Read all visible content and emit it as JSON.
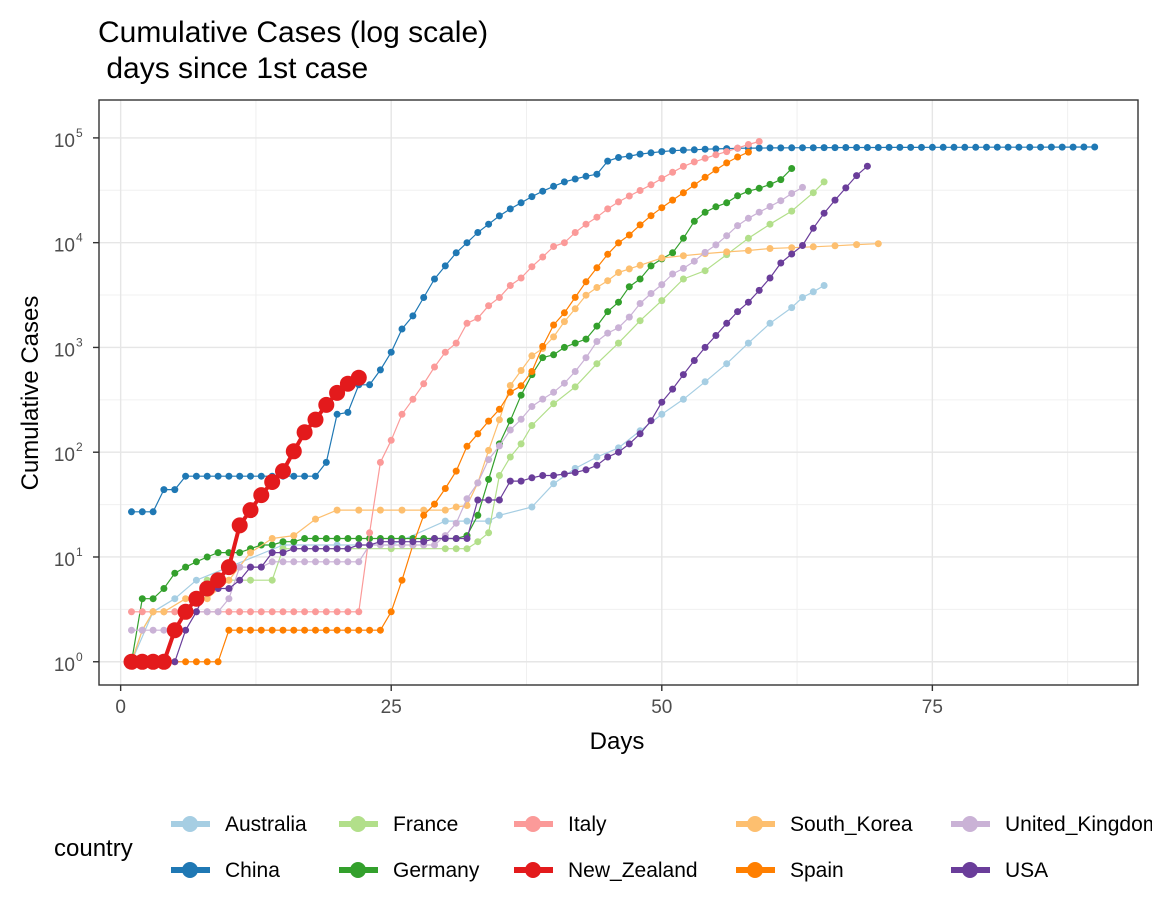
{
  "chart_data": {
    "type": "line",
    "title": "Cumulative Cases (log scale)",
    "subtitle": " days since 1st case",
    "xlabel": "Days",
    "ylabel": "Cumulative Cases",
    "x_scale": "linear",
    "y_scale": "log10",
    "xlim": [
      -2,
      94
    ],
    "ylim": [
      0.6,
      230000
    ],
    "x_ticks": [
      0,
      25,
      50,
      75
    ],
    "y_tick_exponents": [
      0,
      1,
      2,
      3,
      4,
      5
    ],
    "y_tick_base": "10",
    "grid": true,
    "legend_title": "country",
    "legend_position": "bottom",
    "series": [
      {
        "name": "Australia",
        "color": "#a6cee3",
        "size": 3.5,
        "x": [
          1,
          3,
          5,
          7,
          10,
          15,
          20,
          25,
          30,
          32,
          34,
          35,
          38,
          40,
          42,
          44,
          46,
          48,
          50,
          52,
          54,
          56,
          58,
          60,
          62,
          63,
          64,
          65
        ],
        "y": [
          1,
          3,
          4,
          6,
          8,
          13,
          13,
          13,
          22,
          22,
          22,
          25,
          30,
          50,
          70,
          90,
          110,
          160,
          230,
          320,
          470,
          700,
          1100,
          1700,
          2400,
          3000,
          3400,
          3900
        ]
      },
      {
        "name": "China",
        "color": "#1f78b4",
        "size": 3.5,
        "x": [
          1,
          2,
          3,
          4,
          5,
          6,
          7,
          8,
          9,
          10,
          11,
          12,
          13,
          14,
          15,
          16,
          17,
          18,
          19,
          20,
          21,
          22,
          23,
          24,
          25,
          26,
          27,
          28,
          29,
          30,
          31,
          32,
          33,
          34,
          35,
          36,
          37,
          38,
          39,
          40,
          41,
          42,
          43,
          44,
          45,
          46,
          47,
          48,
          49,
          50,
          51,
          52,
          53,
          54,
          55,
          56,
          57,
          58,
          59,
          60,
          61,
          62,
          63,
          64,
          65,
          66,
          67,
          68,
          69,
          70,
          71,
          72,
          73,
          74,
          75,
          76,
          77,
          78,
          79,
          80,
          81,
          82,
          83,
          84,
          85,
          86,
          87,
          88,
          89,
          90
        ],
        "y": [
          27,
          27,
          27,
          44,
          44,
          59,
          59,
          59,
          59,
          59,
          59,
          59,
          59,
          59,
          59,
          59,
          59,
          59,
          80,
          230,
          240,
          440,
          440,
          610,
          900,
          1500,
          2000,
          3000,
          4500,
          6000,
          8000,
          10000,
          12500,
          15000,
          18000,
          21000,
          24000,
          27500,
          31000,
          34500,
          38000,
          40500,
          43000,
          45000,
          60000,
          65000,
          67000,
          70000,
          72000,
          74000,
          75500,
          76500,
          77000,
          78000,
          78500,
          79000,
          79500,
          80000,
          80000,
          80200,
          80300,
          80500,
          80600,
          80700,
          80800,
          80850,
          80900,
          80950,
          81000,
          81050,
          81100,
          81150,
          81200,
          81200,
          81250,
          81300,
          81350,
          81400,
          81400,
          81450,
          81500,
          81500,
          81550,
          81600,
          81600,
          81650,
          81700,
          81750,
          81800,
          81800
        ]
      },
      {
        "name": "France",
        "color": "#b2df8a",
        "size": 3.5,
        "x": [
          1,
          2,
          3,
          4,
          5,
          6,
          8,
          10,
          12,
          14,
          15,
          20,
          25,
          30,
          31,
          32,
          33,
          34,
          35,
          36,
          37,
          38,
          40,
          42,
          44,
          46,
          48,
          50,
          52,
          54,
          56,
          58,
          60,
          62,
          64,
          65
        ],
        "y": [
          1,
          2,
          3,
          3,
          3,
          3,
          6,
          6,
          6,
          6,
          12,
          12,
          12,
          12,
          12,
          12,
          14,
          17,
          60,
          90,
          120,
          180,
          290,
          420,
          700,
          1100,
          1800,
          2800,
          4500,
          5400,
          7700,
          11000,
          15000,
          20000,
          30000,
          38000
        ]
      },
      {
        "name": "Germany",
        "color": "#33a02c",
        "size": 3.5,
        "x": [
          1,
          2,
          3,
          4,
          5,
          6,
          7,
          8,
          9,
          10,
          11,
          12,
          13,
          14,
          15,
          16,
          17,
          18,
          19,
          20,
          21,
          22,
          23,
          24,
          25,
          26,
          27,
          28,
          29,
          30,
          31,
          32,
          33,
          34,
          35,
          36,
          37,
          38,
          39,
          40,
          41,
          42,
          43,
          44,
          45,
          46,
          47,
          48,
          49,
          50,
          51,
          52,
          53,
          54,
          55,
          56,
          57,
          58,
          59,
          60,
          61,
          62
        ],
        "y": [
          1,
          4,
          4,
          5,
          7,
          8,
          9,
          10,
          11,
          11,
          11,
          12,
          13,
          13,
          14,
          14,
          15,
          15,
          15,
          15,
          15,
          15,
          15,
          15,
          15,
          15,
          15,
          15,
          15,
          15,
          15,
          16,
          25,
          55,
          120,
          200,
          350,
          550,
          800,
          850,
          1000,
          1100,
          1200,
          1600,
          2200,
          2700,
          3800,
          4500,
          6000,
          7000,
          8000,
          11000,
          16000,
          19500,
          22000,
          24000,
          28000,
          31000,
          33000,
          36000,
          40000,
          51000
        ]
      },
      {
        "name": "Italy",
        "color": "#fb9a99",
        "size": 3.5,
        "x": [
          1,
          2,
          3,
          4,
          5,
          6,
          7,
          8,
          9,
          10,
          11,
          12,
          13,
          14,
          15,
          16,
          17,
          18,
          19,
          20,
          21,
          22,
          23,
          24,
          25,
          26,
          27,
          28,
          29,
          30,
          31,
          32,
          33,
          34,
          35,
          36,
          37,
          38,
          39,
          40,
          41,
          42,
          43,
          44,
          45,
          46,
          47,
          48,
          49,
          50,
          51,
          52,
          53,
          54,
          55,
          56,
          57,
          58,
          59
        ],
        "y": [
          3,
          3,
          3,
          3,
          3,
          3,
          3,
          3,
          3,
          3,
          3,
          3,
          3,
          3,
          3,
          3,
          3,
          3,
          3,
          3,
          3,
          3,
          17,
          80,
          130,
          230,
          320,
          450,
          650,
          900,
          1100,
          1700,
          1900,
          2500,
          3000,
          3900,
          4600,
          5900,
          7300,
          9200,
          10000,
          12500,
          15000,
          17500,
          21000,
          24500,
          27900,
          31500,
          35700,
          41000,
          47000,
          53500,
          59000,
          63900,
          69000,
          74000,
          80000,
          86500,
          92400
        ]
      },
      {
        "name": "New_Zealand",
        "color": "#e31a1c",
        "size": 8,
        "x": [
          1,
          2,
          3,
          4,
          5,
          6,
          7,
          8,
          9,
          10,
          11,
          12,
          13,
          14,
          15,
          16,
          17,
          18,
          19,
          20,
          21,
          22
        ],
        "y": [
          1,
          1,
          1,
          1,
          2,
          3,
          4,
          5,
          6,
          8,
          20,
          28,
          39,
          52,
          66,
          102,
          155,
          205,
          283,
          368,
          451,
          514
        ]
      },
      {
        "name": "South_Korea",
        "color": "#fdbf6f",
        "size": 3.5,
        "x": [
          1,
          2,
          3,
          4,
          6,
          8,
          10,
          12,
          14,
          16,
          18,
          20,
          22,
          24,
          26,
          28,
          30,
          31,
          32,
          33,
          34,
          35,
          36,
          37,
          38,
          39,
          40,
          41,
          42,
          43,
          44,
          45,
          46,
          47,
          48,
          50,
          52,
          54,
          56,
          58,
          60,
          62,
          64,
          66,
          68,
          70
        ],
        "y": [
          1,
          2,
          3,
          3,
          4,
          4,
          6,
          11,
          15,
          16,
          23,
          28,
          28,
          28,
          28,
          28,
          28,
          30,
          31,
          51,
          104,
          204,
          433,
          602,
          833,
          977,
          1261,
          1766,
          2337,
          3150,
          3736,
          4335,
          5186,
          5621,
          6088,
          7134,
          7513,
          7869,
          8162,
          8413,
          8799,
          8961,
          9137,
          9332,
          9583,
          9786
        ]
      },
      {
        "name": "Spain",
        "color": "#ff7f00",
        "size": 3.5,
        "x": [
          1,
          2,
          4,
          5,
          6,
          7,
          8,
          9,
          10,
          11,
          12,
          13,
          14,
          15,
          16,
          17,
          18,
          19,
          20,
          21,
          22,
          23,
          24,
          25,
          26,
          27,
          28,
          29,
          30,
          31,
          32,
          33,
          34,
          35,
          36,
          37,
          38,
          39,
          40,
          41,
          42,
          43,
          44,
          45,
          46,
          47,
          48,
          49,
          50,
          51,
          52,
          53,
          54,
          55,
          56,
          57,
          58
        ],
        "y": [
          1,
          1,
          1,
          1,
          1,
          1,
          1,
          1,
          2,
          2,
          2,
          2,
          2,
          2,
          2,
          2,
          2,
          2,
          2,
          2,
          2,
          2,
          2,
          3,
          6,
          13,
          25,
          32,
          45,
          66,
          114,
          150,
          198,
          257,
          374,
          430,
          589,
          1024,
          1639,
          2140,
          3004,
          4231,
          5753,
          7753,
          9942,
          11826,
          14769,
          18077,
          21571,
          25496,
          29909,
          35480,
          42058,
          49515,
          57786,
          65719,
          73235
        ]
      },
      {
        "name": "United_Kingdom",
        "color": "#cab2d6",
        "size": 3.5,
        "x": [
          1,
          2,
          3,
          4,
          5,
          6,
          7,
          8,
          9,
          10,
          11,
          12,
          13,
          14,
          15,
          16,
          17,
          18,
          19,
          20,
          21,
          22,
          23,
          24,
          25,
          26,
          27,
          28,
          29,
          30,
          31,
          32,
          33,
          34,
          35,
          36,
          37,
          38,
          39,
          40,
          41,
          42,
          43,
          44,
          45,
          46,
          47,
          48,
          49,
          50,
          51,
          52,
          53,
          54,
          55,
          56,
          57,
          58,
          59,
          60,
          61,
          62,
          63
        ],
        "y": [
          2,
          2,
          2,
          2,
          2,
          3,
          3,
          3,
          3,
          4,
          8,
          8,
          8,
          9,
          9,
          9,
          9,
          9,
          9,
          9,
          9,
          9,
          13,
          13,
          13,
          13,
          13,
          13,
          13,
          16,
          21,
          36,
          51,
          85,
          115,
          163,
          206,
          273,
          321,
          373,
          456,
          590,
          798,
          1140,
          1372,
          1543,
          1950,
          2626,
          3269,
          3983,
          5018,
          5683,
          6650,
          8077,
          9529,
          11658,
          14543,
          17089,
          19522,
          22141,
          25150,
          29474,
          33718
        ]
      },
      {
        "name": "USA",
        "color": "#6a3d9a",
        "size": 3.5,
        "x": [
          1,
          2,
          3,
          4,
          5,
          6,
          7,
          8,
          9,
          10,
          11,
          12,
          13,
          14,
          15,
          16,
          17,
          18,
          19,
          20,
          21,
          22,
          23,
          24,
          25,
          26,
          27,
          28,
          29,
          30,
          31,
          32,
          33,
          34,
          35,
          36,
          37,
          38,
          39,
          40,
          41,
          42,
          43,
          44,
          45,
          46,
          47,
          48,
          49,
          50,
          51,
          52,
          53,
          54,
          55,
          56,
          57,
          58,
          59,
          60,
          61,
          62,
          63,
          64,
          65,
          66,
          67,
          68,
          69
        ],
        "y": [
          1,
          1,
          1,
          1,
          1,
          2,
          3,
          5,
          5,
          5,
          6,
          8,
          8,
          11,
          11,
          12,
          12,
          12,
          12,
          12,
          12,
          13,
          13,
          14,
          14,
          14,
          14,
          14,
          15,
          15,
          15,
          15,
          35,
          35,
          35,
          53,
          53,
          57,
          60,
          60,
          62,
          64,
          68,
          75,
          90,
          100,
          120,
          150,
          200,
          300,
          400,
          550,
          750,
          1000,
          1300,
          1700,
          2200,
          2700,
          3500,
          4600,
          6400,
          7800,
          9400,
          13700,
          19100,
          25500,
          33300,
          43700,
          53700
        ]
      }
    ]
  }
}
